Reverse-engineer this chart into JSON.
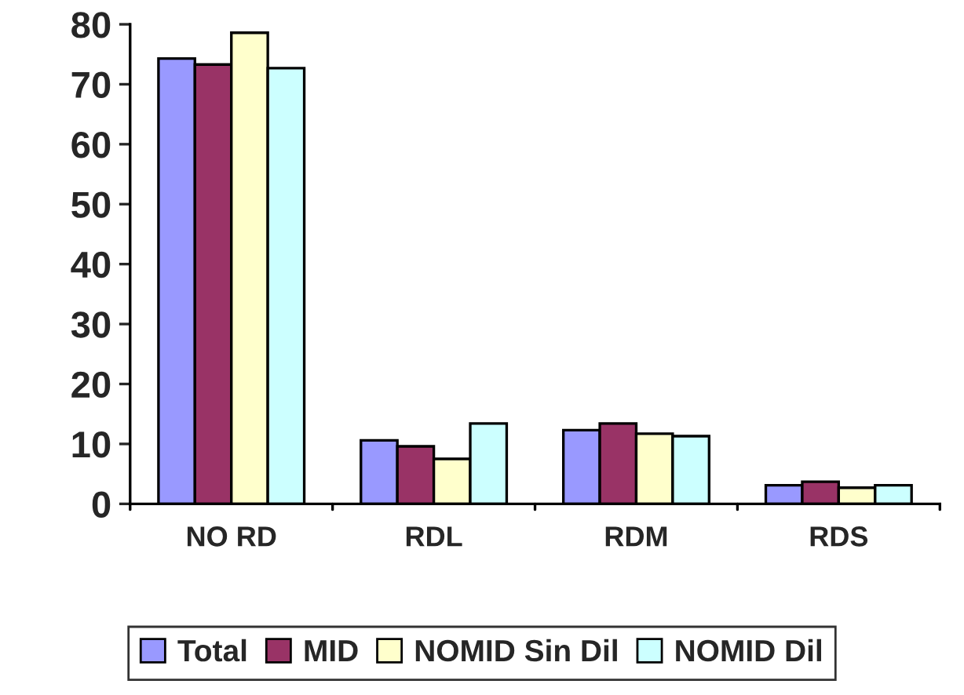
{
  "chart_data": {
    "type": "bar",
    "categories": [
      "NO RD",
      "RDL",
      "RDM",
      "RDS"
    ],
    "series": [
      {
        "name": "Total",
        "color": "#9999ff",
        "values": [
          74.3,
          10.6,
          12.3,
          3.1
        ]
      },
      {
        "name": "MID",
        "color": "#993366",
        "values": [
          73.3,
          9.6,
          13.4,
          3.7
        ]
      },
      {
        "name": "NOMID Sin Dil",
        "color": "#ffffcc",
        "values": [
          78.6,
          7.5,
          11.7,
          2.7
        ]
      },
      {
        "name": "NOMID Dil",
        "color": "#ccffff",
        "values": [
          72.7,
          13.4,
          11.3,
          3.1
        ]
      }
    ],
    "ylim": [
      0,
      80
    ],
    "yticks": [
      0,
      10,
      20,
      30,
      40,
      50,
      60,
      70,
      80
    ],
    "grid": false,
    "legend": "bottom"
  }
}
